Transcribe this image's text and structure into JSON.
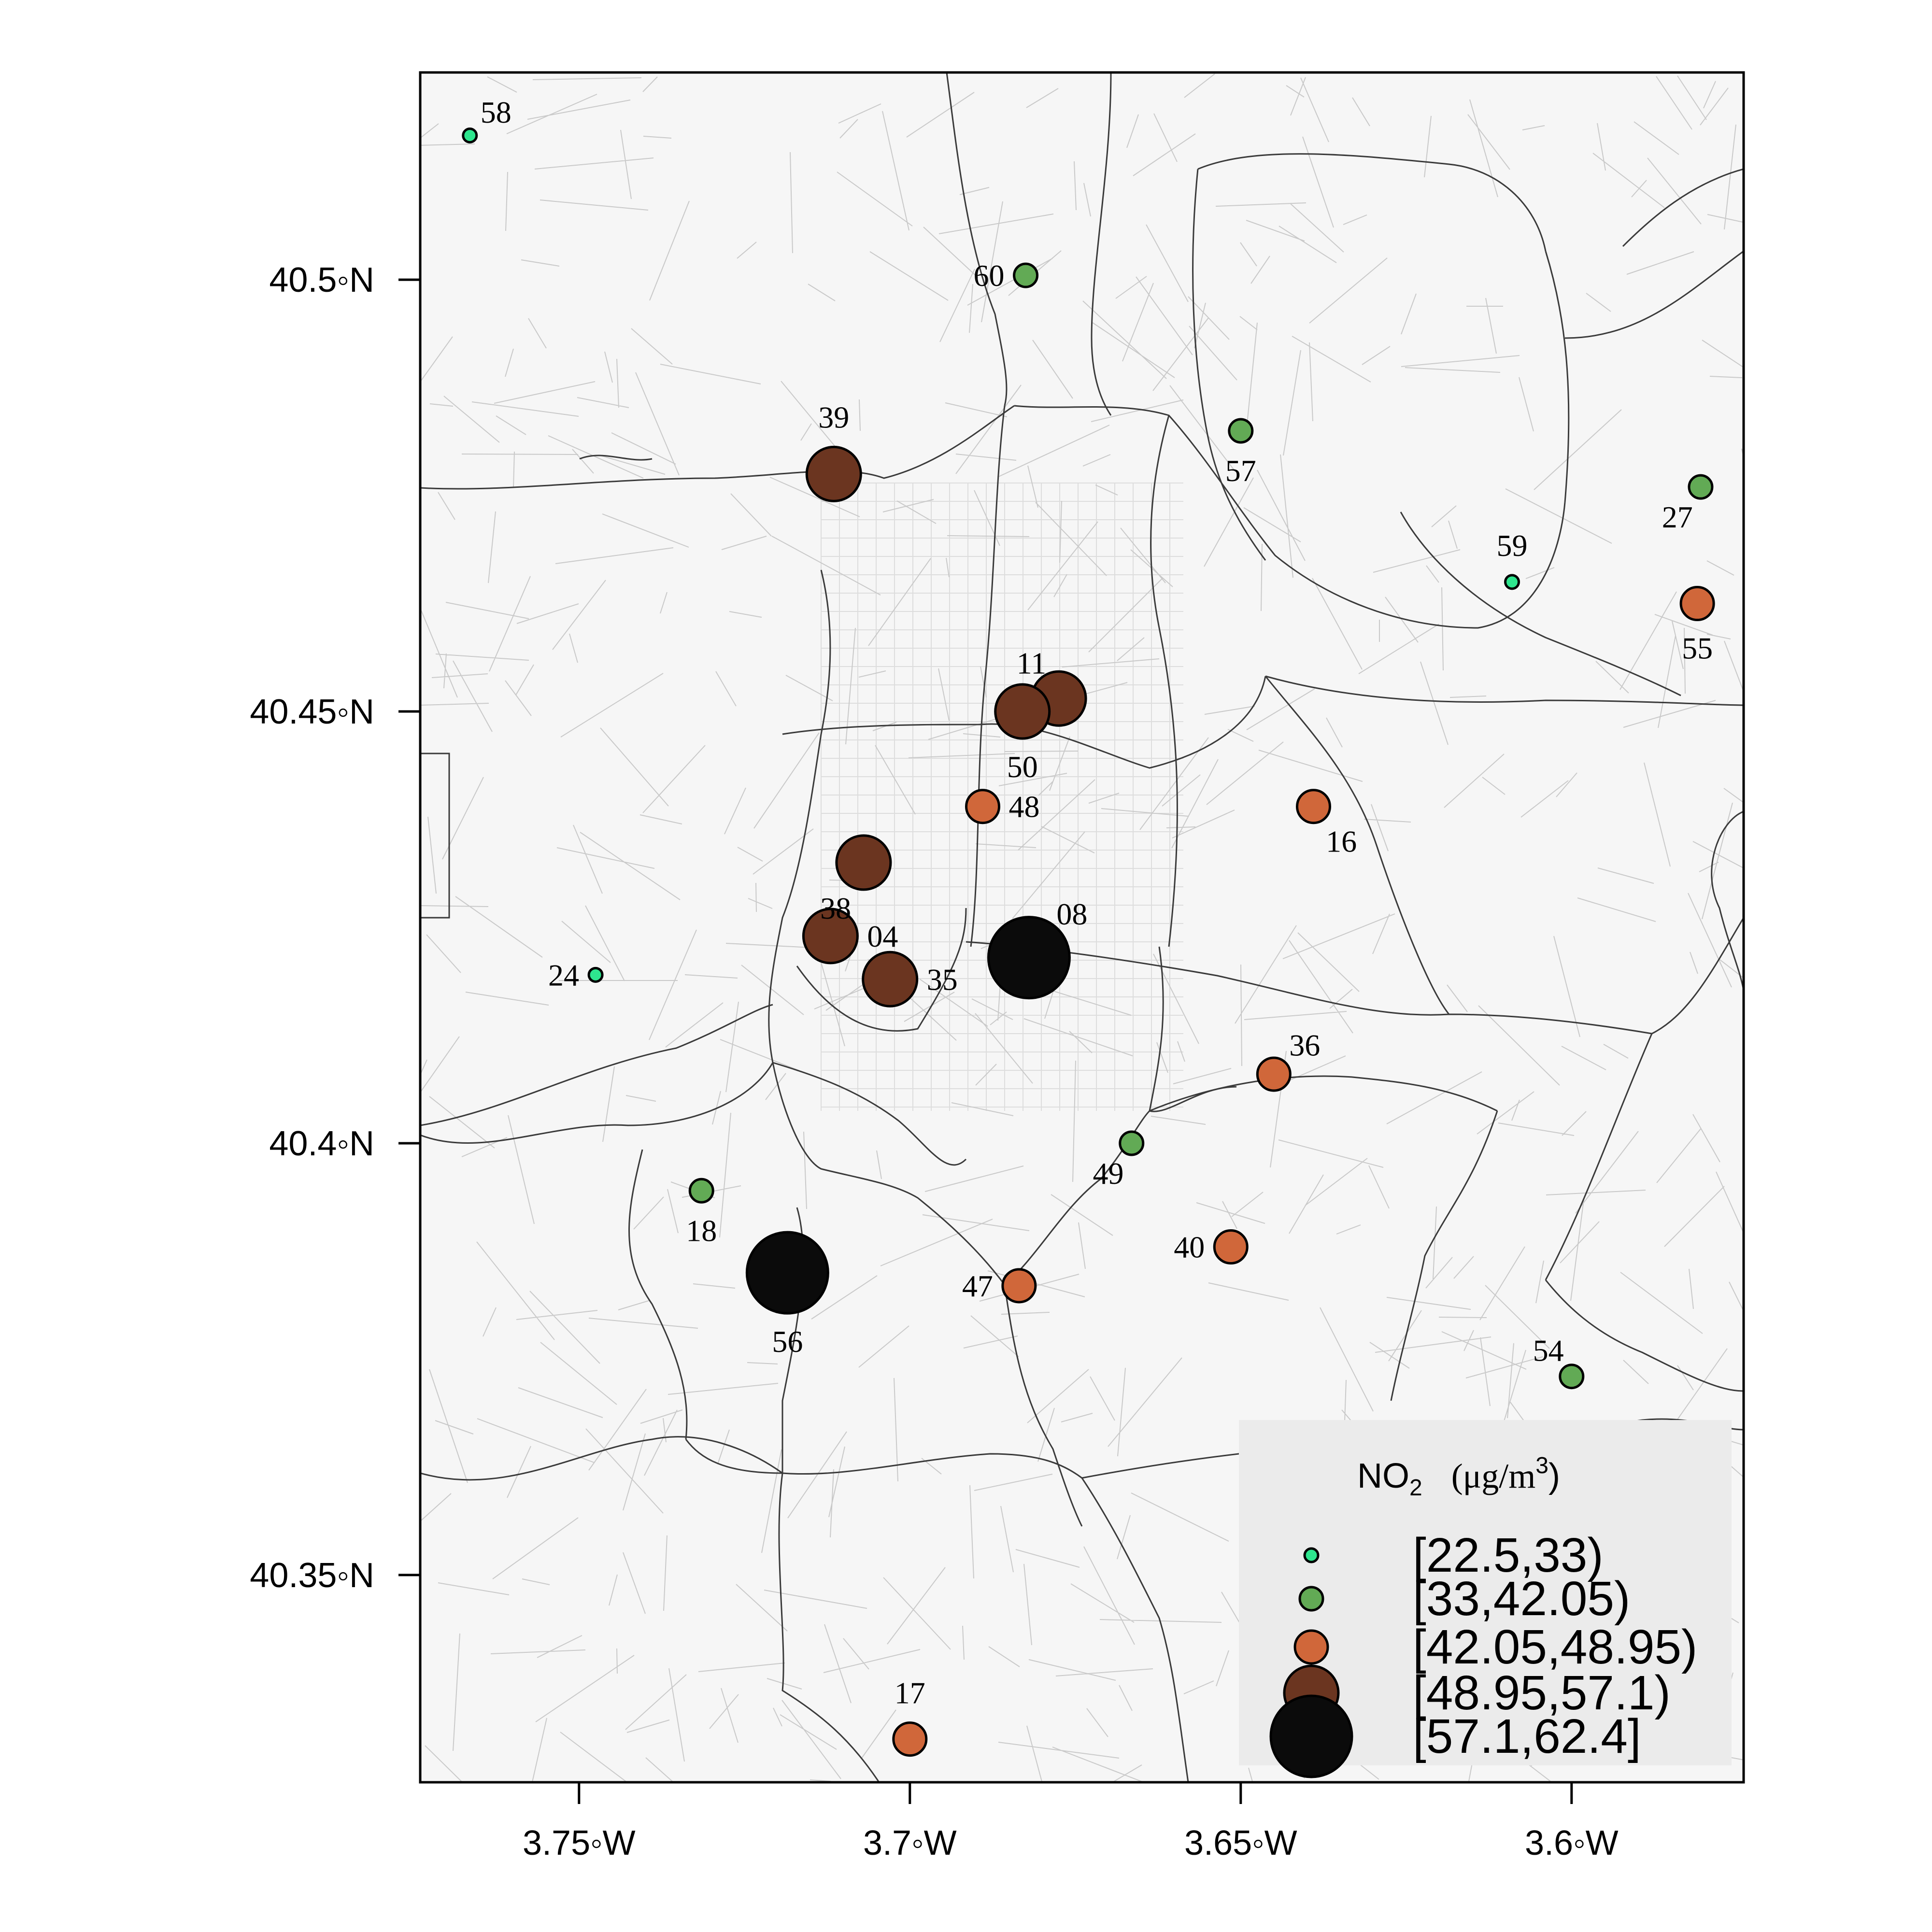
{
  "axes": {
    "x_ticks": [
      {
        "value": -3.75,
        "label": "3.75◦W"
      },
      {
        "value": -3.7,
        "label": "3.7◦W"
      },
      {
        "value": -3.65,
        "label": "3.65◦W"
      },
      {
        "value": -3.6,
        "label": "3.6◦W"
      }
    ],
    "y_ticks": [
      {
        "value": 40.5,
        "label": "40.5◦N"
      },
      {
        "value": 40.45,
        "label": "40.45◦N"
      },
      {
        "value": 40.4,
        "label": "40.4◦N"
      },
      {
        "value": 40.35,
        "label": "40.35◦N"
      }
    ],
    "xlim": [
      -3.774,
      -3.574
    ],
    "ylim": [
      40.326,
      40.524
    ]
  },
  "legend": {
    "title": "NO",
    "title_sub": "2",
    "title_unit": "(μg/m",
    "title_sup": "3",
    "title_end": ")",
    "placement": "bottom-right",
    "classes": [
      {
        "label": "[22.5,33)",
        "color": "#2ee68e",
        "size": 1
      },
      {
        "label": "[33,42.05)",
        "color": "#62aa55",
        "size": 2
      },
      {
        "label": "[42.05,48.95)",
        "color": "#d0673a",
        "size": 3
      },
      {
        "label": "[48.95,57.1)",
        "color": "#6b3520",
        "size": 4
      },
      {
        "label": "[57.1,62.4]",
        "color": "#0b0b0b",
        "size": 5
      }
    ]
  },
  "chart_data": {
    "type": "scatter",
    "xlabel": "",
    "ylabel": "",
    "points": [
      {
        "id": "58",
        "lon": -3.7665,
        "lat": 40.5167,
        "cls": 0,
        "lpos": "ne"
      },
      {
        "id": "60",
        "lon": -3.6825,
        "lat": 40.5005,
        "cls": 1,
        "lpos": "w"
      },
      {
        "id": "57",
        "lon": -3.65,
        "lat": 40.4825,
        "cls": 1,
        "lpos": "s"
      },
      {
        "id": "39",
        "lon": -3.7115,
        "lat": 40.4775,
        "cls": 3,
        "lpos": "n"
      },
      {
        "id": "27",
        "lon": -3.5805,
        "lat": 40.476,
        "cls": 1,
        "lpos": "sw"
      },
      {
        "id": "59",
        "lon": -3.609,
        "lat": 40.465,
        "cls": 0,
        "lpos": "n"
      },
      {
        "id": "55",
        "lon": -3.581,
        "lat": 40.4625,
        "cls": 2,
        "lpos": "s"
      },
      {
        "id": "11",
        "lon": -3.6775,
        "lat": 40.4515,
        "cls": 3,
        "lpos": "nw"
      },
      {
        "id": "50",
        "lon": -3.683,
        "lat": 40.45,
        "cls": 3,
        "lpos": "s"
      },
      {
        "id": "48",
        "lon": -3.689,
        "lat": 40.439,
        "cls": 2,
        "lpos": "e"
      },
      {
        "id": "16",
        "lon": -3.639,
        "lat": 40.439,
        "cls": 2,
        "lpos": "se"
      },
      {
        "id": "38",
        "lon": -3.707,
        "lat": 40.4325,
        "cls": 3,
        "lpos": "sw"
      },
      {
        "id": "04",
        "lon": -3.712,
        "lat": 40.424,
        "cls": 3,
        "lpos": "e"
      },
      {
        "id": "08",
        "lon": -3.682,
        "lat": 40.4215,
        "cls": 4,
        "lpos": "ne"
      },
      {
        "id": "35",
        "lon": -3.703,
        "lat": 40.419,
        "cls": 3,
        "lpos": "e"
      },
      {
        "id": "24",
        "lon": -3.7475,
        "lat": 40.4195,
        "cls": 0,
        "lpos": "w"
      },
      {
        "id": "36",
        "lon": -3.645,
        "lat": 40.408,
        "cls": 2,
        "lpos": "ne"
      },
      {
        "id": "49",
        "lon": -3.6665,
        "lat": 40.4,
        "cls": 1,
        "lpos": "sw"
      },
      {
        "id": "18",
        "lon": -3.7315,
        "lat": 40.3945,
        "cls": 1,
        "lpos": "s"
      },
      {
        "id": "40",
        "lon": -3.6515,
        "lat": 40.388,
        "cls": 2,
        "lpos": "w"
      },
      {
        "id": "56",
        "lon": -3.7185,
        "lat": 40.385,
        "cls": 4,
        "lpos": "s"
      },
      {
        "id": "47",
        "lon": -3.6835,
        "lat": 40.3835,
        "cls": 2,
        "lpos": "w"
      },
      {
        "id": "54",
        "lon": -3.6,
        "lat": 40.373,
        "cls": 1,
        "lpos": "nw"
      },
      {
        "id": "17",
        "lon": -3.7,
        "lat": 40.331,
        "cls": 2,
        "lpos": "n"
      }
    ]
  }
}
